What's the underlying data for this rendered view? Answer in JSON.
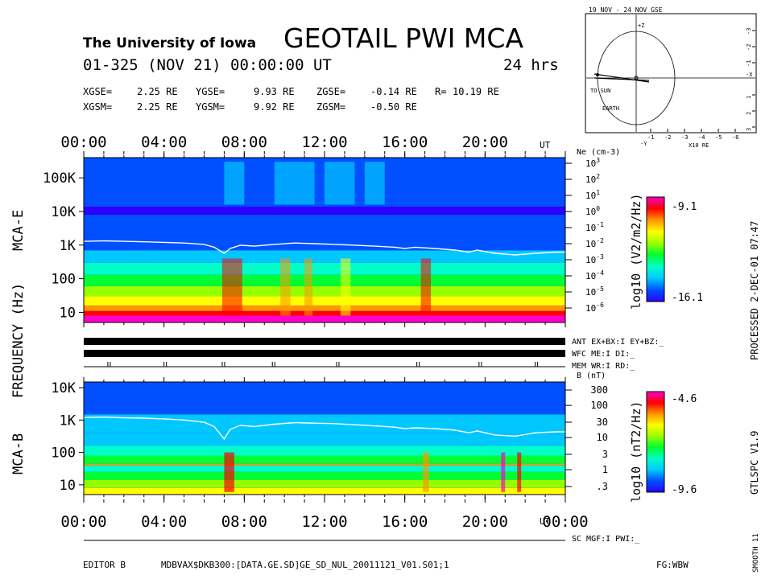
{
  "header": {
    "institution": "The University of Iowa",
    "title": "GEOTAIL PWI MCA",
    "datetime": "01-325 (NOV 21) 00:00:00 UT",
    "span": "24 hrs",
    "gse": {
      "x_label": "XGSE=",
      "x": "2.25 RE",
      "y_label": "YGSE=",
      "y": "9.93 RE",
      "z_label": "ZGSE=",
      "z": "-0.14 RE",
      "r_label": "R=",
      "r": "10.19 RE"
    },
    "gsm": {
      "x_label": "XGSM=",
      "x": "2.25 RE",
      "y_label": "YGSM=",
      "y": "9.92 RE",
      "z_label": "ZGSM=",
      "z": "-0.50 RE"
    }
  },
  "orbit": {
    "title": "19 NOV - 24 NOV GSE",
    "to_sun": "TO SUN",
    "earth": "EARTH",
    "units": "X10 RE",
    "x_label": "-X",
    "z_label": "+Z",
    "y_label": "-Y",
    "x_ticks": [
      "-1",
      "-2",
      "-3",
      "-4",
      "-5",
      "-6"
    ],
    "y_ticks": [
      "-3",
      "-2",
      "-1",
      "1",
      "2",
      "3"
    ]
  },
  "side_text": {
    "processed": "PROCESSED 2-DEC-01 07:47",
    "version": "GTLSPC V1.9",
    "smooth": "SMOOTH 11"
  },
  "status": {
    "ant": "ANT EX+BX:I EY+BZ:_",
    "wfc": "WFC ME:I DI:_",
    "mem": "MEM WR:I RD:_",
    "sc": "SC MGF:I PWI:_"
  },
  "footer": {
    "editor": "EDITOR B",
    "file": "MDBVAX$DKB300:[DATA.GE.SD]GE_SD_NUL_20011121_V01.S01;1",
    "fg": "FG:WBW"
  },
  "labels": {
    "frequency": "FREQUENCY (Hz)",
    "mca_e": "MCA-E",
    "mca_b": "MCA-B",
    "ut": "UT"
  },
  "colors": {
    "background": "#ffffff",
    "foreground": "#000000",
    "density_line": "#ffffff",
    "colormap": [
      "#2b00ff",
      "#0050ff",
      "#00c8ff",
      "#00ffc8",
      "#00ff32",
      "#96ff00",
      "#ffff00",
      "#ff9600",
      "#ff0000",
      "#ff00c8"
    ]
  },
  "chart_data": [
    {
      "type": "heatmap",
      "name": "MCA-E",
      "ylabel": "FREQUENCY (Hz)",
      "yscale": "log",
      "ylim": [
        5,
        400000
      ],
      "y_ticks": [
        "10",
        "100",
        "1K",
        "10K",
        "100K"
      ],
      "x_ticks": [
        "00:00",
        "04:00",
        "08:00",
        "12:00",
        "16:00",
        "20:00"
      ],
      "xlim_hours": [
        0,
        24
      ],
      "colorbar": {
        "label": "log10 (V2/m2/Hz)",
        "max": "-9.1",
        "min": "-16.1"
      },
      "right_axis": {
        "label": "Ne (cm-3)",
        "ticks": [
          "10^3",
          "10^2",
          "10^1",
          "10^0",
          "10^-1",
          "10^-2",
          "10^-3",
          "10^-4",
          "10^-5",
          "10^-6"
        ]
      },
      "overlay": {
        "name": "electron density",
        "hours": [
          0,
          1,
          2,
          3,
          4,
          5,
          6,
          6.5,
          7.0,
          7.3,
          7.8,
          8.5,
          9.5,
          10.5,
          11.5,
          12.5,
          13.5,
          14.5,
          15.5,
          16.0,
          16.5,
          17.5,
          18.5,
          19.2,
          19.6,
          20.5,
          21.5,
          22.5,
          23.5,
          24
        ],
        "ne_cm3": [
          0.014,
          0.015,
          0.014,
          0.013,
          0.012,
          0.011,
          0.009,
          0.006,
          0.0025,
          0.005,
          0.008,
          0.007,
          0.009,
          0.011,
          0.01,
          0.009,
          0.008,
          0.007,
          0.006,
          0.005,
          0.006,
          0.005,
          0.004,
          0.003,
          0.004,
          0.0025,
          0.002,
          0.0025,
          0.003,
          0.003
        ]
      }
    },
    {
      "type": "heatmap",
      "name": "MCA-B",
      "ylabel": "FREQUENCY (Hz)",
      "yscale": "log",
      "ylim": [
        5,
        15000
      ],
      "y_ticks": [
        "10",
        "100",
        "1K",
        "10K"
      ],
      "x_ticks": [
        "00:00",
        "04:00",
        "08:00",
        "12:00",
        "16:00",
        "20:00",
        "00:00"
      ],
      "xlim_hours": [
        0,
        24
      ],
      "colorbar": {
        "label": "log10 (nT2/Hz)",
        "max": "-4.6",
        "min": "-9.6"
      },
      "right_axis": {
        "label": "B (nT)",
        "ticks": [
          "300",
          "100",
          "30",
          "10",
          "3",
          "1",
          ".3"
        ]
      },
      "overlay": {
        "name": "magnetic field magnitude",
        "hours": [
          0,
          1,
          2,
          3,
          4,
          5,
          6,
          6.5,
          7.0,
          7.3,
          7.8,
          8.5,
          9.5,
          10.5,
          11.5,
          12.5,
          13.5,
          14.5,
          15.5,
          16.0,
          16.5,
          17.5,
          18.5,
          19.2,
          19.6,
          20.5,
          21.5,
          22.5,
          23.5,
          24
        ],
        "b_nt": [
          42,
          43,
          41,
          40,
          38,
          35,
          30,
          22,
          9,
          18,
          24,
          22,
          26,
          29,
          28,
          27,
          25,
          23,
          21,
          19,
          20,
          19,
          17,
          14,
          16,
          12,
          11,
          14,
          15,
          15
        ]
      }
    }
  ]
}
